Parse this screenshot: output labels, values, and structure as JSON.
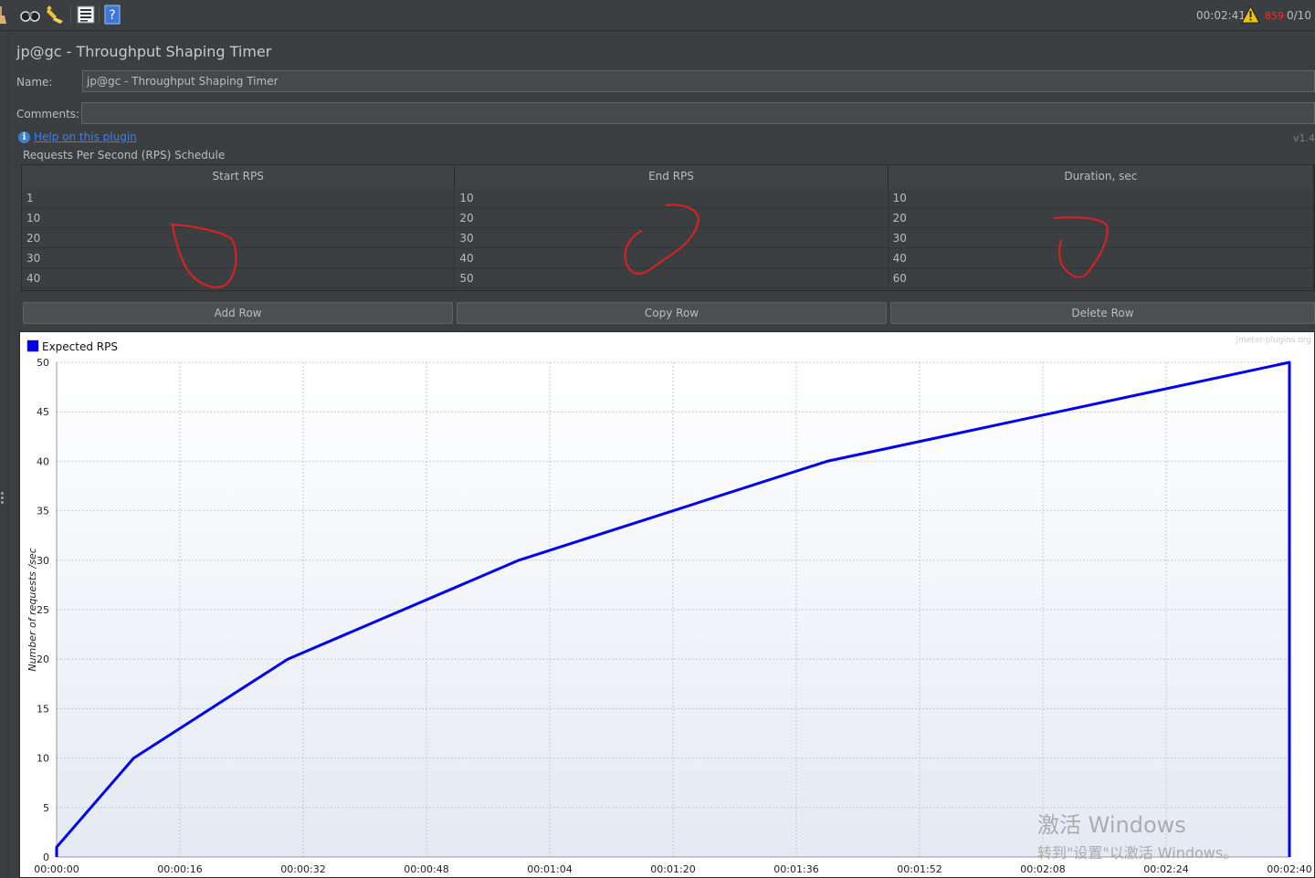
{
  "toolbar": {
    "elapsed_time": "00:02:41",
    "warning_count": "859",
    "threads": "0/10",
    "icons": [
      "broom-icon",
      "binoculars-icon",
      "clear-icon",
      "log-list-icon",
      "help-icon"
    ]
  },
  "plugin": {
    "title": "jp@gc - Throughput Shaping Timer",
    "name_label": "Name:",
    "name_value": "jp@gc - Throughput Shaping Timer",
    "comments_label": "Comments:",
    "comments_value": "",
    "help_link": "Help on this plugin",
    "version": "v1.4"
  },
  "schedule": {
    "title": "Requests Per Second (RPS) Schedule",
    "columns": [
      "Start RPS",
      "End RPS",
      "Duration, sec"
    ],
    "rows": [
      [
        "1",
        "10",
        "10"
      ],
      [
        "10",
        "20",
        "20"
      ],
      [
        "20",
        "30",
        "30"
      ],
      [
        "30",
        "40",
        "40"
      ],
      [
        "40",
        "50",
        "60"
      ]
    ],
    "buttons": {
      "add": "Add Row",
      "copy": "Copy Row",
      "delete": "Delete Row"
    }
  },
  "chart_data": {
    "type": "line",
    "legend": "Expected RPS",
    "legend_position": "top-left",
    "watermark_text": "jmeter-plugins.org",
    "ylabel": "Number of requests /sec",
    "xlabel": "",
    "ylim": [
      0,
      50
    ],
    "yticks": [
      0,
      5,
      10,
      15,
      20,
      25,
      30,
      35,
      40,
      45,
      50
    ],
    "xlim_sec": [
      0,
      160
    ],
    "xtick_labels": [
      "00:00:00",
      "00:00:16",
      "00:00:32",
      "00:00:48",
      "00:01:04",
      "00:01:20",
      "00:01:36",
      "00:01:52",
      "00:02:08",
      "00:02:24",
      "00:02:40"
    ],
    "grid": true,
    "color": "#0000ee",
    "series": [
      {
        "name": "Expected RPS",
        "x_sec": [
          0,
          0,
          10,
          30,
          60,
          100,
          160,
          160
        ],
        "values": [
          0,
          1,
          10,
          20,
          30,
          40,
          50,
          0
        ]
      }
    ]
  },
  "os_watermark": {
    "line1": "激活 Windows",
    "line2": "转到\"设置\"以激活 Windows。"
  }
}
